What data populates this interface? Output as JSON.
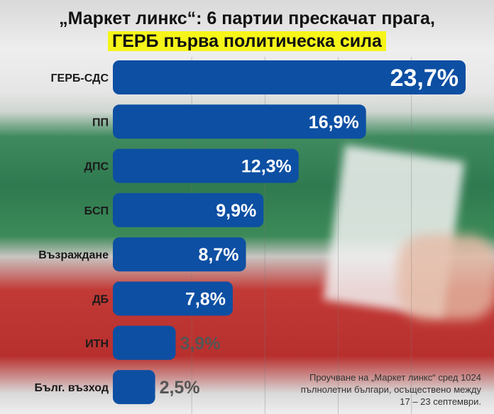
{
  "chart_data": {
    "type": "bar",
    "orientation": "horizontal",
    "title": "„Маркет линкс“: 6 партии прескачат прага,",
    "subtitle": "ГЕРБ първа политическа сила",
    "categories": [
      "ГЕРБ-СДС",
      "ПП",
      "ДПС",
      "БСП",
      "Възраждане",
      "ДБ",
      "ИТН",
      "Бълг. възход"
    ],
    "values": [
      23.7,
      16.9,
      12.3,
      9.9,
      8.7,
      7.8,
      3.9,
      2.5
    ],
    "labels": [
      "23,7%",
      "16,9%",
      "12,3%",
      "9,9%",
      "8,7%",
      "7,8%",
      "3,9%",
      "2,5%"
    ],
    "xlim": [
      0,
      25
    ],
    "grid": true,
    "bar_color": "#0d4fa3",
    "highlight_color": "#f5f51a"
  },
  "note": [
    "Проучване на „Маркет линкс“ сред 1024",
    "пълнолетни българи, осъществено между",
    "17 – 23 септември."
  ]
}
